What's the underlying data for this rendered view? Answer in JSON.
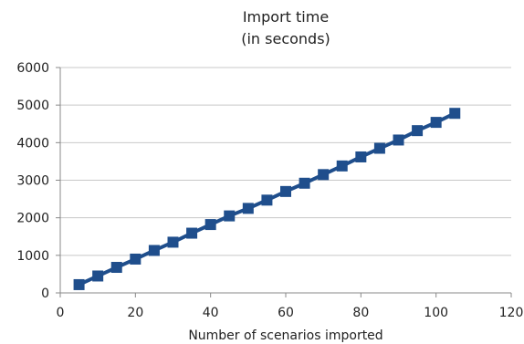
{
  "chart_data": {
    "type": "line",
    "title": "Import time",
    "subtitle": "(in seconds)",
    "xlabel": "Number of scenarios imported",
    "ylabel": "",
    "xlim": [
      0,
      120
    ],
    "ylim": [
      0,
      6000
    ],
    "x_ticks": [
      0,
      20,
      40,
      60,
      80,
      100,
      120
    ],
    "y_ticks": [
      0,
      1000,
      2000,
      3000,
      4000,
      5000,
      6000
    ],
    "grid": "horizontal",
    "legend": "none",
    "series": [
      {
        "color": "#1F4E8C",
        "marker": "square",
        "points": [
          {
            "x": 5,
            "y": 220
          },
          {
            "x": 10,
            "y": 450
          },
          {
            "x": 15,
            "y": 680
          },
          {
            "x": 20,
            "y": 900
          },
          {
            "x": 25,
            "y": 1130
          },
          {
            "x": 30,
            "y": 1350
          },
          {
            "x": 35,
            "y": 1590
          },
          {
            "x": 40,
            "y": 1820
          },
          {
            "x": 45,
            "y": 2050
          },
          {
            "x": 50,
            "y": 2250
          },
          {
            "x": 55,
            "y": 2470
          },
          {
            "x": 60,
            "y": 2700
          },
          {
            "x": 65,
            "y": 2920
          },
          {
            "x": 70,
            "y": 3150
          },
          {
            "x": 75,
            "y": 3380
          },
          {
            "x": 80,
            "y": 3620
          },
          {
            "x": 85,
            "y": 3850
          },
          {
            "x": 90,
            "y": 4070
          },
          {
            "x": 95,
            "y": 4320
          },
          {
            "x": 100,
            "y": 4540
          },
          {
            "x": 105,
            "y": 4780
          }
        ]
      }
    ]
  }
}
